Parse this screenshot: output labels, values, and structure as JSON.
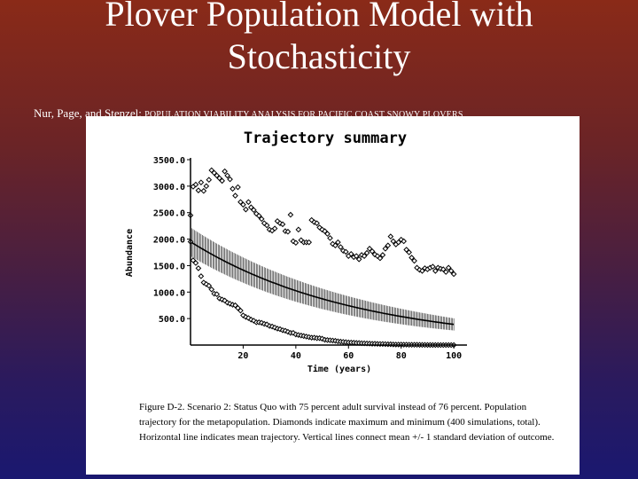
{
  "slide": {
    "title_line1": "Plover Population Model with",
    "title_line2": "Stochasticity",
    "citation_authors": "Nur, Page, and Stenzel: ",
    "citation_work": "POPULATION VIABILITY ANALYSIS FOR PACIFIC COAST SNOWY PLOVERS"
  },
  "caption": {
    "text": "Figure D-2.  Scenario 2: Status Quo with 75 percent adult survival instead of 76 percent.  Population trajectory for the metapopulation.  Diamonds indicate maximum and minimum (400 simulations, total).  Horizontal line indicates mean trajectory.  Vertical lines connect mean +/- 1 standard deviation of outcome."
  },
  "chart_data": {
    "type": "line",
    "title": "Trajectory summary",
    "xlabel": "Time (years)",
    "ylabel": "Abundance",
    "xlim": [
      0,
      105
    ],
    "ylim": [
      0,
      3500
    ],
    "xticks": [
      20,
      40,
      60,
      80,
      100
    ],
    "yticks": [
      500.0,
      1000.0,
      1500.0,
      2000.0,
      2500.0,
      3000.0,
      3500.0
    ],
    "ytick_labels": [
      "500.0",
      "1000.0",
      "1500.0",
      "2000.0",
      "2500.0",
      "3000.0",
      "3500.0"
    ],
    "grid": false,
    "series": [
      {
        "marker": "diamond",
        "points": [
          [
            0,
            2450
          ],
          [
            1,
            2990
          ],
          [
            2,
            3030
          ],
          [
            3,
            2920
          ],
          [
            4,
            3070
          ],
          [
            5,
            2910
          ],
          [
            6,
            3000
          ],
          [
            7,
            3120
          ],
          [
            8,
            3300
          ],
          [
            9,
            3250
          ],
          [
            10,
            3200
          ],
          [
            11,
            3150
          ],
          [
            12,
            3100
          ],
          [
            13,
            3280
          ],
          [
            14,
            3200
          ],
          [
            15,
            3130
          ],
          [
            16,
            2950
          ],
          [
            17,
            2820
          ],
          [
            18,
            2980
          ],
          [
            19,
            2700
          ],
          [
            20,
            2650
          ],
          [
            21,
            2560
          ],
          [
            22,
            2700
          ],
          [
            23,
            2600
          ],
          [
            24,
            2550
          ],
          [
            25,
            2480
          ],
          [
            26,
            2440
          ],
          [
            27,
            2380
          ],
          [
            28,
            2300
          ],
          [
            29,
            2260
          ],
          [
            30,
            2180
          ],
          [
            31,
            2160
          ],
          [
            32,
            2200
          ],
          [
            33,
            2340
          ],
          [
            34,
            2300
          ],
          [
            35,
            2280
          ],
          [
            36,
            2150
          ],
          [
            37,
            2140
          ],
          [
            38,
            2460
          ],
          [
            39,
            1960
          ],
          [
            40,
            1930
          ],
          [
            41,
            2180
          ],
          [
            42,
            1980
          ],
          [
            43,
            1940
          ],
          [
            44,
            1940
          ],
          [
            45,
            1940
          ],
          [
            46,
            2360
          ],
          [
            47,
            2320
          ],
          [
            48,
            2300
          ],
          [
            49,
            2220
          ],
          [
            50,
            2180
          ],
          [
            51,
            2150
          ],
          [
            52,
            2100
          ],
          [
            53,
            2020
          ],
          [
            54,
            1910
          ],
          [
            55,
            1880
          ],
          [
            56,
            1940
          ],
          [
            57,
            1850
          ],
          [
            58,
            1780
          ],
          [
            59,
            1760
          ],
          [
            60,
            1680
          ],
          [
            61,
            1720
          ],
          [
            62,
            1660
          ],
          [
            63,
            1680
          ],
          [
            64,
            1620
          ],
          [
            65,
            1700
          ],
          [
            66,
            1680
          ],
          [
            67,
            1740
          ],
          [
            68,
            1820
          ],
          [
            69,
            1770
          ],
          [
            70,
            1710
          ],
          [
            71,
            1680
          ],
          [
            72,
            1640
          ],
          [
            73,
            1700
          ],
          [
            74,
            1820
          ],
          [
            75,
            1880
          ],
          [
            76,
            2050
          ],
          [
            77,
            1960
          ],
          [
            78,
            1900
          ],
          [
            79,
            1940
          ],
          [
            80,
            1990
          ],
          [
            81,
            1960
          ],
          [
            82,
            1800
          ],
          [
            83,
            1750
          ],
          [
            84,
            1650
          ],
          [
            85,
            1590
          ],
          [
            86,
            1460
          ],
          [
            87,
            1420
          ],
          [
            88,
            1400
          ],
          [
            89,
            1450
          ],
          [
            90,
            1430
          ],
          [
            91,
            1460
          ],
          [
            92,
            1480
          ],
          [
            93,
            1400
          ],
          [
            94,
            1460
          ],
          [
            95,
            1440
          ],
          [
            96,
            1430
          ],
          [
            97,
            1380
          ],
          [
            98,
            1460
          ],
          [
            99,
            1400
          ],
          [
            100,
            1340
          ]
        ]
      },
      {
        "marker": "diamond",
        "points": [
          [
            0,
            1950
          ],
          [
            1,
            1600
          ],
          [
            2,
            1550
          ],
          [
            3,
            1450
          ],
          [
            4,
            1300
          ],
          [
            5,
            1180
          ],
          [
            6,
            1150
          ],
          [
            7,
            1120
          ],
          [
            8,
            1050
          ],
          [
            9,
            970
          ],
          [
            10,
            960
          ],
          [
            11,
            880
          ],
          [
            12,
            860
          ],
          [
            13,
            840
          ],
          [
            14,
            800
          ],
          [
            15,
            780
          ],
          [
            16,
            760
          ],
          [
            17,
            750
          ],
          [
            18,
            700
          ],
          [
            19,
            650
          ],
          [
            20,
            560
          ],
          [
            21,
            530
          ],
          [
            22,
            510
          ],
          [
            23,
            480
          ],
          [
            24,
            460
          ],
          [
            25,
            430
          ],
          [
            26,
            430
          ],
          [
            27,
            420
          ],
          [
            28,
            400
          ],
          [
            29,
            390
          ],
          [
            30,
            360
          ],
          [
            31,
            350
          ],
          [
            32,
            330
          ],
          [
            33,
            310
          ],
          [
            34,
            300
          ],
          [
            35,
            280
          ],
          [
            36,
            270
          ],
          [
            37,
            250
          ],
          [
            38,
            230
          ],
          [
            39,
            230
          ],
          [
            40,
            200
          ],
          [
            41,
            190
          ],
          [
            42,
            180
          ],
          [
            43,
            170
          ],
          [
            44,
            160
          ],
          [
            45,
            150
          ],
          [
            46,
            140
          ],
          [
            47,
            140
          ],
          [
            48,
            130
          ],
          [
            49,
            130
          ],
          [
            50,
            120
          ],
          [
            51,
            100
          ],
          [
            52,
            95
          ],
          [
            53,
            90
          ],
          [
            54,
            85
          ],
          [
            55,
            80
          ],
          [
            56,
            70
          ],
          [
            57,
            65
          ],
          [
            58,
            60
          ],
          [
            59,
            55
          ],
          [
            60,
            50
          ],
          [
            61,
            48
          ],
          [
            62,
            45
          ],
          [
            63,
            40
          ],
          [
            64,
            38
          ],
          [
            65,
            35
          ],
          [
            66,
            33
          ],
          [
            67,
            30
          ],
          [
            68,
            28
          ],
          [
            69,
            25
          ],
          [
            70,
            25
          ],
          [
            71,
            22
          ],
          [
            72,
            20
          ],
          [
            73,
            20
          ],
          [
            74,
            18
          ],
          [
            75,
            15
          ],
          [
            76,
            15
          ],
          [
            77,
            12
          ],
          [
            78,
            10
          ],
          [
            79,
            10
          ],
          [
            80,
            10
          ],
          [
            81,
            8
          ],
          [
            82,
            8
          ],
          [
            83,
            5
          ],
          [
            84,
            5
          ],
          [
            85,
            5
          ],
          [
            86,
            5
          ],
          [
            87,
            4
          ],
          [
            88,
            3
          ],
          [
            89,
            3
          ],
          [
            90,
            2
          ],
          [
            91,
            2
          ],
          [
            92,
            1
          ],
          [
            93,
            1
          ],
          [
            94,
            1
          ],
          [
            95,
            0
          ],
          [
            96,
            0
          ],
          [
            97,
            0
          ],
          [
            98,
            0
          ],
          [
            99,
            0
          ],
          [
            100,
            0
          ]
        ]
      },
      {
        "marker": "line",
        "x_range": [
          0,
          100
        ],
        "mean_start": 1950,
        "mean_end": 390,
        "sd_start": 270,
        "sd_end": 115
      }
    ]
  }
}
